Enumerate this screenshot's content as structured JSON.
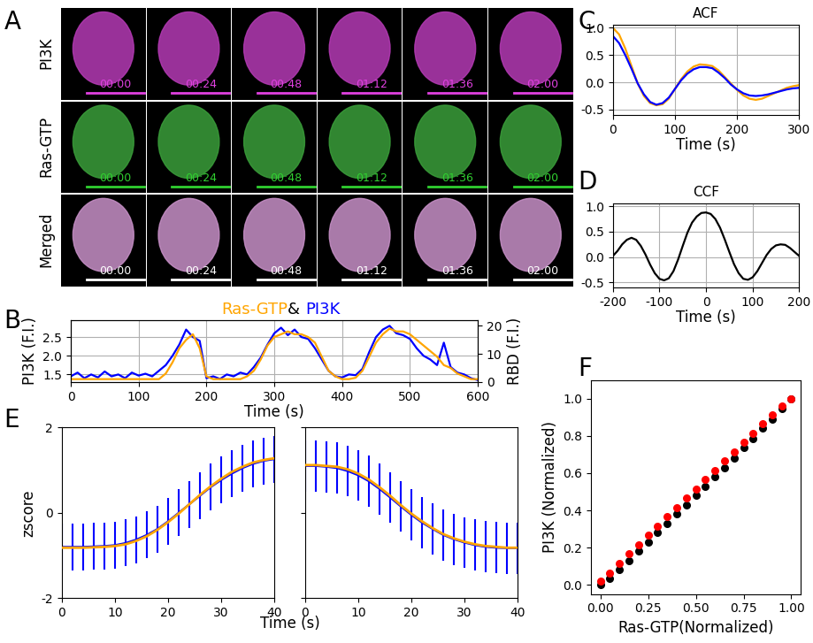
{
  "image_panel": {
    "panel": "A",
    "rows": [
      {
        "label": "PI3K",
        "color": "#e040e0"
      },
      {
        "label": "Ras-GTP",
        "color": "#30d030"
      },
      {
        "label": "Merged",
        "color": "#ffffff"
      }
    ],
    "timestamps": [
      "00:00",
      "00:24",
      "00:48",
      "01:12",
      "01:36",
      "02:00"
    ]
  },
  "chart_data": [
    {
      "panel": "B",
      "type": "line",
      "title_parts": [
        {
          "text": "Ras-GTP",
          "color": "orange"
        },
        {
          "text": "& ",
          "color": "black"
        },
        {
          "text": "PI3K",
          "color": "blue"
        }
      ],
      "xlabel": "Time (s)",
      "ylabel": "PI3K (F.I.)",
      "y2label": "RBD (F.I.)",
      "xlim": [
        0,
        600
      ],
      "xticks": [
        0,
        100,
        200,
        300,
        400,
        500,
        600
      ],
      "ylim": [
        1.3,
        2.95
      ],
      "yticks": [
        1.5,
        2.0,
        2.5
      ],
      "y2lim": [
        0,
        22
      ],
      "y2ticks": [
        0,
        10,
        20
      ],
      "grid": true,
      "series": [
        {
          "color": "blue",
          "x": [
            0,
            10,
            20,
            30,
            40,
            50,
            60,
            70,
            80,
            90,
            100,
            110,
            120,
            130,
            140,
            150,
            160,
            170,
            180,
            190,
            200,
            210,
            220,
            230,
            240,
            250,
            260,
            270,
            280,
            290,
            300,
            310,
            320,
            330,
            340,
            350,
            360,
            370,
            380,
            390,
            400,
            410,
            420,
            430,
            440,
            450,
            460,
            470,
            480,
            490,
            500,
            510,
            520,
            530,
            540,
            550,
            560,
            570,
            580,
            590,
            600
          ],
          "values": [
            1.45,
            1.55,
            1.4,
            1.5,
            1.42,
            1.58,
            1.45,
            1.5,
            1.4,
            1.55,
            1.47,
            1.52,
            1.45,
            1.6,
            1.75,
            2.0,
            2.3,
            2.7,
            2.5,
            2.4,
            1.4,
            1.45,
            1.38,
            1.5,
            1.45,
            1.55,
            1.5,
            1.7,
            1.95,
            2.3,
            2.6,
            2.75,
            2.55,
            2.7,
            2.5,
            2.45,
            2.2,
            1.9,
            1.6,
            1.45,
            1.42,
            1.5,
            1.48,
            1.65,
            2.1,
            2.5,
            2.7,
            2.8,
            2.6,
            2.55,
            2.45,
            2.2,
            2.0,
            1.9,
            1.75,
            2.35,
            1.7,
            1.55,
            1.5,
            1.4,
            1.35
          ]
        },
        {
          "color": "orange",
          "axis": "y2",
          "x": [
            0,
            10,
            20,
            30,
            40,
            50,
            60,
            70,
            80,
            90,
            100,
            110,
            120,
            130,
            140,
            150,
            160,
            170,
            180,
            190,
            200,
            210,
            220,
            230,
            240,
            250,
            260,
            270,
            280,
            290,
            300,
            310,
            320,
            330,
            340,
            350,
            360,
            370,
            380,
            390,
            400,
            410,
            420,
            430,
            440,
            450,
            460,
            470,
            480,
            490,
            500,
            510,
            520,
            530,
            540,
            550,
            560,
            570,
            580,
            590,
            600
          ],
          "values": [
            1,
            1,
            1,
            1,
            1,
            1,
            1,
            1,
            1,
            1,
            1,
            1,
            1,
            1,
            3,
            7,
            12,
            15,
            17,
            12,
            2,
            1,
            1,
            1,
            1,
            1,
            2,
            4,
            8,
            13,
            16,
            17,
            18,
            17,
            17,
            16,
            14,
            9,
            4,
            2,
            1,
            1,
            1.5,
            4,
            9,
            14,
            17,
            19,
            18,
            18,
            17,
            15,
            13,
            11,
            9,
            6,
            5,
            3,
            2,
            1,
            1
          ]
        }
      ]
    },
    {
      "panel": "C",
      "type": "line",
      "title": "ACF",
      "xlabel": "Time (s)",
      "xlim": [
        0,
        300
      ],
      "xticks": [
        0,
        100,
        200,
        300
      ],
      "ylim": [
        -0.6,
        1.05
      ],
      "yticks": [
        {
          "value": -0.5,
          "label": "-0.5"
        },
        {
          "value": 0,
          "label": "0.0"
        },
        {
          "value": 0.5,
          "label": "0.5"
        },
        {
          "value": 1,
          "label": "1.0"
        }
      ],
      "grid": true,
      "series": [
        {
          "color": "orange",
          "x": [
            0,
            10,
            20,
            30,
            40,
            50,
            60,
            70,
            80,
            90,
            100,
            110,
            120,
            130,
            140,
            150,
            160,
            170,
            180,
            190,
            200,
            210,
            220,
            230,
            240,
            250,
            260,
            270,
            280,
            290,
            300
          ],
          "values": [
            1.0,
            0.88,
            0.62,
            0.3,
            -0.02,
            -0.25,
            -0.38,
            -0.42,
            -0.4,
            -0.3,
            -0.12,
            0.06,
            0.2,
            0.29,
            0.33,
            0.32,
            0.3,
            0.22,
            0.1,
            -0.02,
            -0.14,
            -0.24,
            -0.3,
            -0.32,
            -0.3,
            -0.25,
            -0.2,
            -0.15,
            -0.1,
            -0.07,
            -0.05
          ]
        },
        {
          "color": "blue",
          "x": [
            0,
            10,
            20,
            30,
            40,
            50,
            60,
            70,
            80,
            90,
            100,
            110,
            120,
            130,
            140,
            150,
            160,
            170,
            180,
            190,
            200,
            210,
            220,
            230,
            240,
            250,
            260,
            270,
            280,
            290,
            300
          ],
          "values": [
            0.85,
            0.72,
            0.5,
            0.25,
            -0.02,
            -0.22,
            -0.36,
            -0.41,
            -0.38,
            -0.28,
            -0.12,
            0.04,
            0.16,
            0.24,
            0.28,
            0.28,
            0.26,
            0.18,
            0.08,
            -0.04,
            -0.13,
            -0.2,
            -0.24,
            -0.25,
            -0.24,
            -0.22,
            -0.19,
            -0.16,
            -0.13,
            -0.11,
            -0.1
          ]
        }
      ]
    },
    {
      "panel": "D",
      "type": "line",
      "title": "CCF",
      "xlabel": "Time (s)",
      "xlim": [
        -200,
        200
      ],
      "xticks": [
        -200,
        -100,
        0,
        100,
        200
      ],
      "ylim": [
        -0.6,
        1.05
      ],
      "yticks": [
        {
          "value": -0.5,
          "label": "-0.5"
        },
        {
          "value": 0,
          "label": "0.0"
        },
        {
          "value": 0.5,
          "label": "0.5"
        },
        {
          "value": 1,
          "label": "1.0"
        }
      ],
      "grid": true,
      "series": [
        {
          "color": "black",
          "x": [
            -200,
            -190,
            -180,
            -170,
            -160,
            -150,
            -140,
            -130,
            -120,
            -110,
            -100,
            -90,
            -80,
            -70,
            -60,
            -50,
            -40,
            -30,
            -20,
            -10,
            0,
            10,
            20,
            30,
            40,
            50,
            60,
            70,
            80,
            90,
            100,
            110,
            120,
            130,
            140,
            150,
            160,
            170,
            180,
            190,
            200
          ],
          "values": [
            0.02,
            0.12,
            0.25,
            0.34,
            0.38,
            0.34,
            0.22,
            0.05,
            -0.15,
            -0.32,
            -0.43,
            -0.46,
            -0.42,
            -0.28,
            -0.05,
            0.22,
            0.48,
            0.68,
            0.8,
            0.87,
            0.88,
            0.85,
            0.75,
            0.58,
            0.35,
            0.1,
            -0.14,
            -0.32,
            -0.43,
            -0.45,
            -0.4,
            -0.28,
            -0.12,
            0.04,
            0.16,
            0.23,
            0.25,
            0.24,
            0.18,
            0.1,
            0.02
          ]
        }
      ]
    },
    {
      "panel": "E",
      "type": "errorbar_pair",
      "xlabel": "Time (s)",
      "ylabel": "zscore",
      "panels": [
        {
          "xlim": [
            0,
            40
          ],
          "xticks": [
            0,
            10,
            20,
            30,
            40
          ],
          "ylim": [
            -2,
            2
          ],
          "yticks": [
            -2,
            0,
            2
          ],
          "series": [
            {
              "color": "blue",
              "x": [
                0,
                2,
                4,
                6,
                8,
                10,
                12,
                14,
                16,
                18,
                20,
                22,
                24,
                26,
                28,
                30,
                32,
                34,
                36,
                38,
                40
              ],
              "values": [
                -0.8,
                -0.8,
                -0.8,
                -0.79,
                -0.78,
                -0.76,
                -0.71,
                -0.63,
                -0.52,
                -0.38,
                -0.2,
                0.0,
                0.2,
                0.4,
                0.6,
                0.77,
                0.92,
                1.05,
                1.15,
                1.22,
                1.26
              ],
              "error": [
                0.55,
                0.55,
                0.55,
                0.55,
                0.55,
                0.55,
                0.55,
                0.55,
                0.55,
                0.55,
                0.55,
                0.55,
                0.55,
                0.55,
                0.55,
                0.55,
                0.55,
                0.55,
                0.55,
                0.55,
                0.55
              ]
            },
            {
              "color": "orange",
              "x": [
                0,
                2,
                4,
                6,
                8,
                10,
                12,
                14,
                16,
                18,
                20,
                22,
                24,
                26,
                28,
                30,
                32,
                34,
                36,
                38,
                40
              ],
              "values": [
                -0.82,
                -0.82,
                -0.82,
                -0.81,
                -0.8,
                -0.78,
                -0.74,
                -0.66,
                -0.55,
                -0.4,
                -0.22,
                -0.02,
                0.2,
                0.42,
                0.62,
                0.8,
                0.96,
                1.08,
                1.18,
                1.24,
                1.28
              ]
            }
          ]
        },
        {
          "xlim": [
            0,
            40
          ],
          "xticks": [
            0,
            10,
            20,
            30,
            40
          ],
          "ylim": [
            -2,
            2
          ],
          "yticks": [
            -2,
            0,
            2
          ],
          "tick_labels": "x",
          "series": [
            {
              "color": "blue",
              "x": [
                0,
                2,
                4,
                6,
                8,
                10,
                12,
                14,
                16,
                18,
                20,
                22,
                24,
                26,
                28,
                30,
                32,
                34,
                36,
                38,
                40
              ],
              "values": [
                1.1,
                1.1,
                1.08,
                1.05,
                0.98,
                0.88,
                0.74,
                0.56,
                0.36,
                0.15,
                -0.05,
                -0.23,
                -0.38,
                -0.52,
                -0.62,
                -0.7,
                -0.76,
                -0.8,
                -0.82,
                -0.83,
                -0.83
              ],
              "error": [
                0.6,
                0.6,
                0.6,
                0.6,
                0.6,
                0.6,
                0.6,
                0.6,
                0.6,
                0.6,
                0.6,
                0.6,
                0.6,
                0.6,
                0.6,
                0.6,
                0.6,
                0.6,
                0.6,
                0.6,
                0.6
              ]
            },
            {
              "color": "orange",
              "x": [
                0,
                2,
                4,
                6,
                8,
                10,
                12,
                14,
                16,
                18,
                20,
                22,
                24,
                26,
                28,
                30,
                32,
                34,
                36,
                38,
                40
              ],
              "values": [
                1.12,
                1.12,
                1.1,
                1.08,
                1.02,
                0.92,
                0.78,
                0.6,
                0.4,
                0.18,
                -0.02,
                -0.2,
                -0.36,
                -0.5,
                -0.6,
                -0.68,
                -0.74,
                -0.78,
                -0.8,
                -0.82,
                -0.82
              ]
            }
          ]
        }
      ]
    },
    {
      "panel": "F",
      "type": "scatter",
      "xlabel": "Ras-GTP(Normalized)",
      "ylabel": "PI3K (Normalized)",
      "xlim": [
        -0.05,
        1.05
      ],
      "xticks": [
        {
          "value": 0,
          "label": "0.00"
        },
        {
          "value": 0.25,
          "label": "0.25"
        },
        {
          "value": 0.5,
          "label": "0.50"
        },
        {
          "value": 0.75,
          "label": "0.75"
        },
        {
          "value": 1,
          "label": "1.00"
        }
      ],
      "ylim": [
        -0.05,
        1.1
      ],
      "yticks": [
        {
          "value": 0,
          "label": "0.0"
        },
        0.2,
        0.4,
        0.6,
        0.8,
        {
          "value": 1,
          "label": "1.0"
        }
      ],
      "series": [
        {
          "color": "black",
          "marker": "o",
          "x": [
            0,
            0.05,
            0.1,
            0.15,
            0.2,
            0.25,
            0.3,
            0.35,
            0.4,
            0.45,
            0.5,
            0.55,
            0.6,
            0.65,
            0.7,
            0.75,
            0.8,
            0.85,
            0.9,
            0.95,
            1.0
          ],
          "values": [
            0,
            0.035,
            0.08,
            0.13,
            0.18,
            0.23,
            0.28,
            0.33,
            0.38,
            0.43,
            0.48,
            0.53,
            0.58,
            0.63,
            0.68,
            0.735,
            0.785,
            0.84,
            0.89,
            0.945,
            1.0
          ]
        },
        {
          "color": "red",
          "marker": "o",
          "x": [
            0,
            0.05,
            0.1,
            0.15,
            0.2,
            0.25,
            0.3,
            0.35,
            0.4,
            0.45,
            0.5,
            0.55,
            0.6,
            0.65,
            0.7,
            0.75,
            0.8,
            0.85,
            0.9,
            0.95,
            1.0
          ],
          "values": [
            0.02,
            0.065,
            0.115,
            0.165,
            0.215,
            0.265,
            0.315,
            0.365,
            0.415,
            0.465,
            0.515,
            0.565,
            0.615,
            0.665,
            0.715,
            0.765,
            0.815,
            0.865,
            0.915,
            0.96,
            1.0
          ]
        }
      ]
    }
  ]
}
